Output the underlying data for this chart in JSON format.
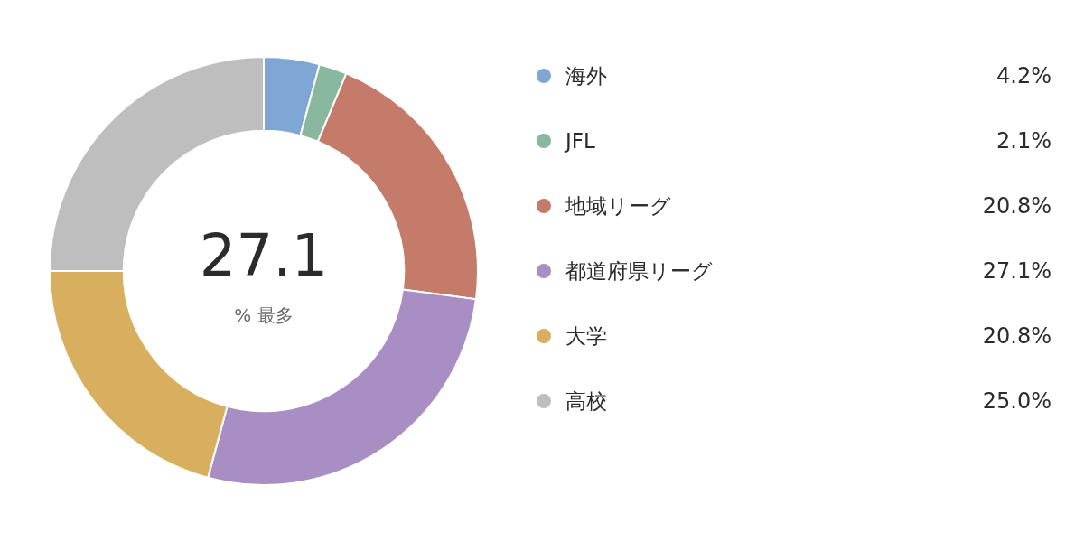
{
  "chart_data": {
    "type": "donut",
    "categories": [
      "海外",
      "JFL",
      "地域リーグ",
      "都道府県リーグ",
      "大学",
      "高校"
    ],
    "values": [
      4.2,
      2.1,
      20.8,
      27.1,
      20.8,
      25.0
    ],
    "colors": [
      "#7fa7d5",
      "#88b89e",
      "#c57b6a",
      "#a98ec4",
      "#d8af5e",
      "#bebebe"
    ],
    "value_labels": [
      "4.2%",
      "2.1%",
      "20.8%",
      "27.1%",
      "20.8%",
      "25.0%"
    ],
    "legend": "right",
    "annotations": [
      "27.1",
      "% 最多"
    ]
  }
}
